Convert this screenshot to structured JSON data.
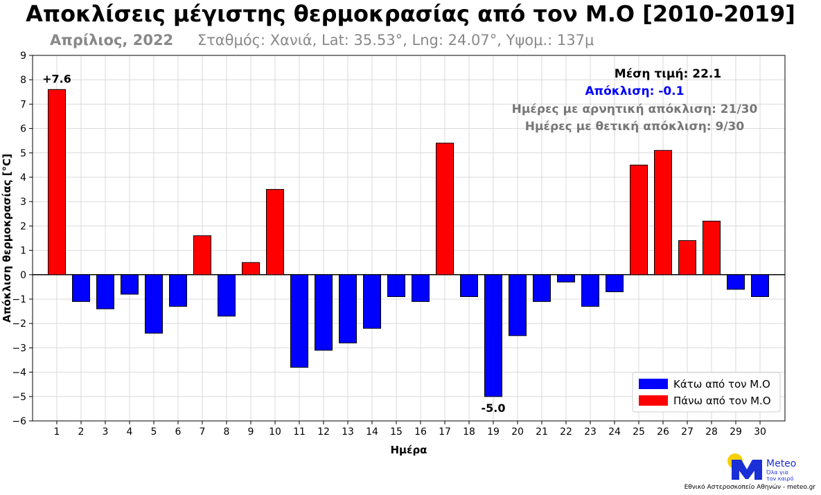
{
  "header": {
    "title": "Αποκλίσεις μέγιστης θερμοκρασίας από τον Μ.Ο [2010-2019]",
    "subtitle_month": "Απρίλιος, 2022",
    "subtitle_station": "Σταθμός: Χανιά, Lat: 35.53°, Lng: 24.07°, Υψομ.: 137μ"
  },
  "stats": {
    "mean": "Μέση τιμή: 22.1",
    "deviation": "Απόκλιση: -0.1",
    "neg_days": "Ημέρες με αρνητική απόκλιση: 21/30",
    "pos_days": "Ημέρες με θετική απόκλιση: 9/30"
  },
  "annotations": {
    "max_label": "+7.6",
    "min_label": "-5.0"
  },
  "legend": [
    {
      "label": "Κάτω από τον Μ.Ο",
      "color": "#0000ff"
    },
    {
      "label": "Πάνω από τον Μ.Ο",
      "color": "#ff0000"
    }
  ],
  "logo": {
    "brand": "Meteo",
    "tagline_1": "Όλα για",
    "tagline_2": "τον καιρό",
    "footer": "Εθνικό Αστεροσκοπείο Αθηνών - meteo.gr"
  },
  "colors": {
    "positive": "#ff0000",
    "negative": "#0000ff",
    "logo_blue": "#1a2fd6",
    "logo_yellow": "#f5d000",
    "stat_deviation": "#0000ff",
    "stat_days": "#777777"
  },
  "chart_data": {
    "type": "bar",
    "xlabel": "Ημέρα",
    "ylabel": "Απόκλιση θερμοκρασίας [°C]",
    "ylim": [
      -6,
      9
    ],
    "yticks": [
      9,
      8,
      7,
      6,
      5,
      4,
      3,
      2,
      1,
      0,
      -1,
      -2,
      -3,
      -4,
      -5,
      -6
    ],
    "grid": true,
    "legend_position": "bottom-right",
    "categories": [
      "1",
      "2",
      "3",
      "4",
      "5",
      "6",
      "7",
      "8",
      "9",
      "10",
      "11",
      "12",
      "13",
      "14",
      "15",
      "16",
      "17",
      "18",
      "19",
      "20",
      "21",
      "22",
      "23",
      "24",
      "25",
      "26",
      "27",
      "28",
      "29",
      "30"
    ],
    "values": [
      7.6,
      -1.1,
      -1.4,
      -0.8,
      -2.4,
      -1.3,
      1.6,
      -1.7,
      0.5,
      3.5,
      -3.8,
      -3.1,
      -2.8,
      -2.2,
      -0.9,
      -1.1,
      5.4,
      -0.9,
      -5.0,
      -2.5,
      -1.1,
      -0.3,
      -1.3,
      -0.7,
      4.5,
      5.1,
      1.4,
      2.2,
      -0.6,
      -0.9
    ]
  }
}
